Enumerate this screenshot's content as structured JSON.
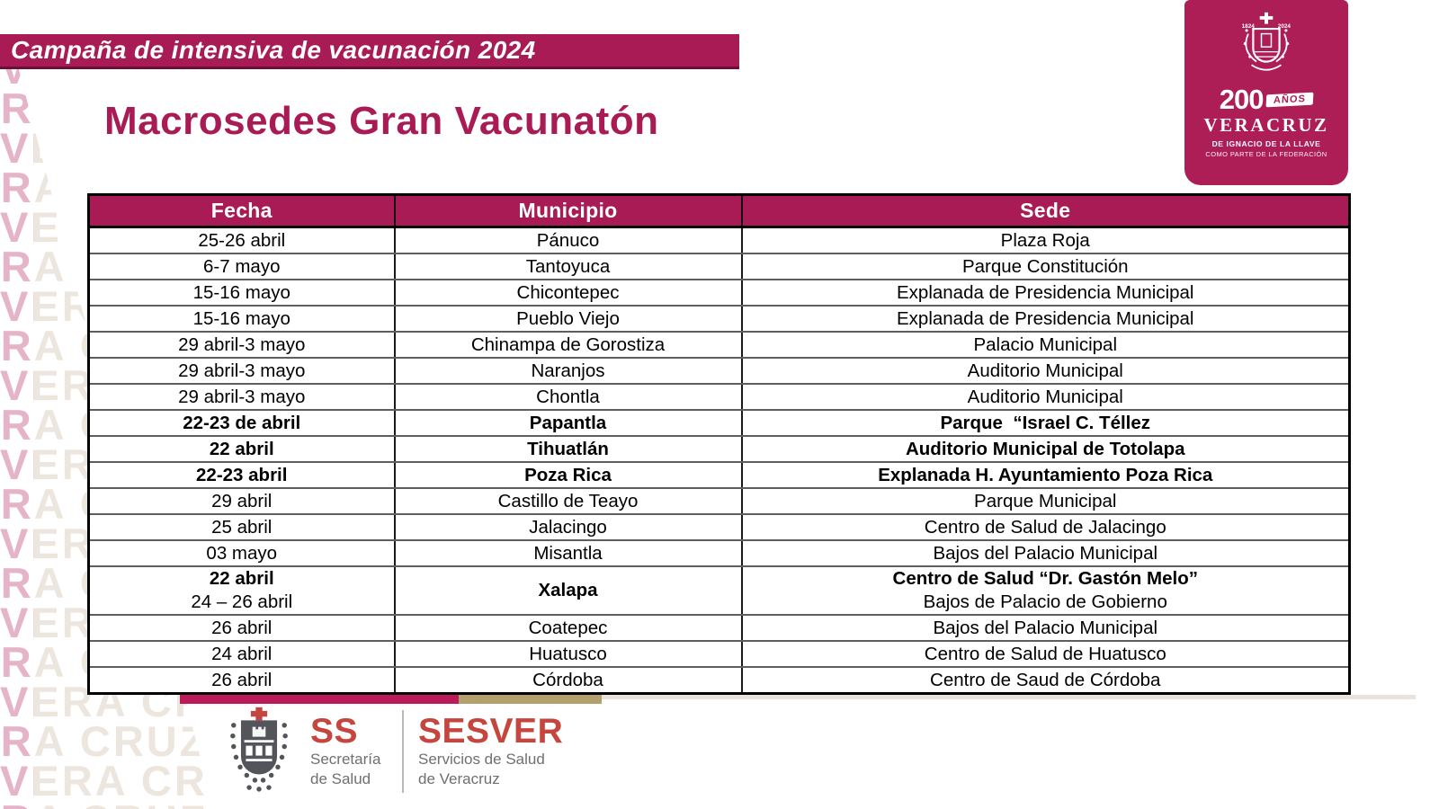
{
  "banner": {
    "text": "Campaña de intensiva de vacunación 2024"
  },
  "title": "Macrosedes Gran Vacunatón",
  "badge": {
    "shield_years": [
      "1824",
      "2024"
    ],
    "big": "200",
    "anios": "AÑOS",
    "name": "VERACRUZ",
    "sub1": "DE IGNACIO DE LA LLAVE",
    "sub2": "COMO PARTE DE LA FEDERACIÓN"
  },
  "table": {
    "headers": [
      "Fecha",
      "Municipio",
      "Sede"
    ],
    "rows": [
      {
        "fecha": [
          {
            "t": "25-26 abril",
            "b": false
          }
        ],
        "municipio": [
          {
            "t": "Pánuco",
            "b": false
          }
        ],
        "sede": [
          {
            "t": "Plaza Roja",
            "b": false
          }
        ]
      },
      {
        "fecha": [
          {
            "t": "6-7 mayo",
            "b": false
          }
        ],
        "municipio": [
          {
            "t": "Tantoyuca",
            "b": false
          }
        ],
        "sede": [
          {
            "t": "Parque Constitución",
            "b": false
          }
        ]
      },
      {
        "fecha": [
          {
            "t": "15-16 mayo",
            "b": false
          }
        ],
        "municipio": [
          {
            "t": "Chicontepec",
            "b": false
          }
        ],
        "sede": [
          {
            "t": "Explanada de Presidencia Municipal",
            "b": false
          }
        ]
      },
      {
        "fecha": [
          {
            "t": "15-16 mayo",
            "b": false
          }
        ],
        "municipio": [
          {
            "t": "Pueblo Viejo",
            "b": false
          }
        ],
        "sede": [
          {
            "t": "Explanada de Presidencia Municipal",
            "b": false
          }
        ]
      },
      {
        "fecha": [
          {
            "t": "29 abril-3 mayo",
            "b": false
          }
        ],
        "municipio": [
          {
            "t": "Chinampa de Gorostiza",
            "b": false
          }
        ],
        "sede": [
          {
            "t": "Palacio Municipal",
            "b": false
          }
        ]
      },
      {
        "fecha": [
          {
            "t": "29 abril-3 mayo",
            "b": false
          }
        ],
        "municipio": [
          {
            "t": "Naranjos",
            "b": false
          }
        ],
        "sede": [
          {
            "t": "Auditorio Municipal",
            "b": false
          }
        ]
      },
      {
        "fecha": [
          {
            "t": "29 abril-3 mayo",
            "b": false
          }
        ],
        "municipio": [
          {
            "t": "Chontla",
            "b": false
          }
        ],
        "sede": [
          {
            "t": "Auditorio Municipal",
            "b": false
          }
        ]
      },
      {
        "fecha": [
          {
            "t": "22-23 de abril",
            "b": true
          }
        ],
        "municipio": [
          {
            "t": "Papantla",
            "b": true
          }
        ],
        "sede": [
          {
            "t": "Parque  “Israel C. Téllez",
            "b": true
          }
        ]
      },
      {
        "fecha": [
          {
            "t": "22 abril",
            "b": true
          }
        ],
        "municipio": [
          {
            "t": "Tihuatlán",
            "b": true
          }
        ],
        "sede": [
          {
            "t": "Auditorio Municipal de Totolapa",
            "b": true
          }
        ]
      },
      {
        "fecha": [
          {
            "t": "22-23 abril",
            "b": true
          }
        ],
        "municipio": [
          {
            "t": "Poza Rica",
            "b": true
          }
        ],
        "sede": [
          {
            "t": "Explanada H. Ayuntamiento Poza Rica",
            "b": true
          }
        ]
      },
      {
        "fecha": [
          {
            "t": "29 abril",
            "b": false
          }
        ],
        "municipio": [
          {
            "t": "Castillo de Teayo",
            "b": false
          }
        ],
        "sede": [
          {
            "t": "Parque Municipal",
            "b": false
          }
        ]
      },
      {
        "fecha": [
          {
            "t": "25 abril",
            "b": false
          }
        ],
        "municipio": [
          {
            "t": "Jalacingo",
            "b": false
          }
        ],
        "sede": [
          {
            "t": "Centro de Salud de Jalacingo",
            "b": false
          }
        ]
      },
      {
        "fecha": [
          {
            "t": "03 mayo",
            "b": false
          }
        ],
        "municipio": [
          {
            "t": "Misantla",
            "b": false
          }
        ],
        "sede": [
          {
            "t": "Bajos del Palacio Municipal",
            "b": false
          }
        ]
      },
      {
        "fecha": [
          {
            "t": "22 abril",
            "b": true
          },
          {
            "t": "24 – 26 abril",
            "b": false
          }
        ],
        "municipio": [
          {
            "t": "Xalapa",
            "b": true
          }
        ],
        "sede": [
          {
            "t": "Centro de Salud “Dr. Gastón Melo”",
            "b": true
          },
          {
            "t": "Bajos de Palacio de Gobierno",
            "b": false
          }
        ]
      },
      {
        "fecha": [
          {
            "t": "26 abril",
            "b": false
          }
        ],
        "municipio": [
          {
            "t": "Coatepec",
            "b": false
          }
        ],
        "sede": [
          {
            "t": "Bajos del Palacio Municipal",
            "b": false
          }
        ]
      },
      {
        "fecha": [
          {
            "t": "24 abril",
            "b": false
          }
        ],
        "municipio": [
          {
            "t": "Huatusco",
            "b": false
          }
        ],
        "sede": [
          {
            "t": "Centro de Salud de Huatusco",
            "b": false
          }
        ]
      },
      {
        "fecha": [
          {
            "t": "26 abril",
            "b": false
          }
        ],
        "municipio": [
          {
            "t": "Córdoba",
            "b": false
          }
        ],
        "sede": [
          {
            "t": "Centro de Saud de Córdoba",
            "b": false
          }
        ]
      }
    ]
  },
  "footer": {
    "ss": "SS",
    "ss_sub1": "Secretaría",
    "ss_sub2": "de Salud",
    "sesver": "SESVER",
    "sesver_sub1": "Servicios de Salud",
    "sesver_sub2": "de Veracruz"
  },
  "watermark": {
    "word": "VERA CRUZ"
  },
  "colors": {
    "crimson": "#A91B54",
    "bar_crimson": "#BB1C59",
    "gold": "#B3A06C",
    "logo_red": "#C4463F",
    "gray_text": "#6F6F6F"
  }
}
